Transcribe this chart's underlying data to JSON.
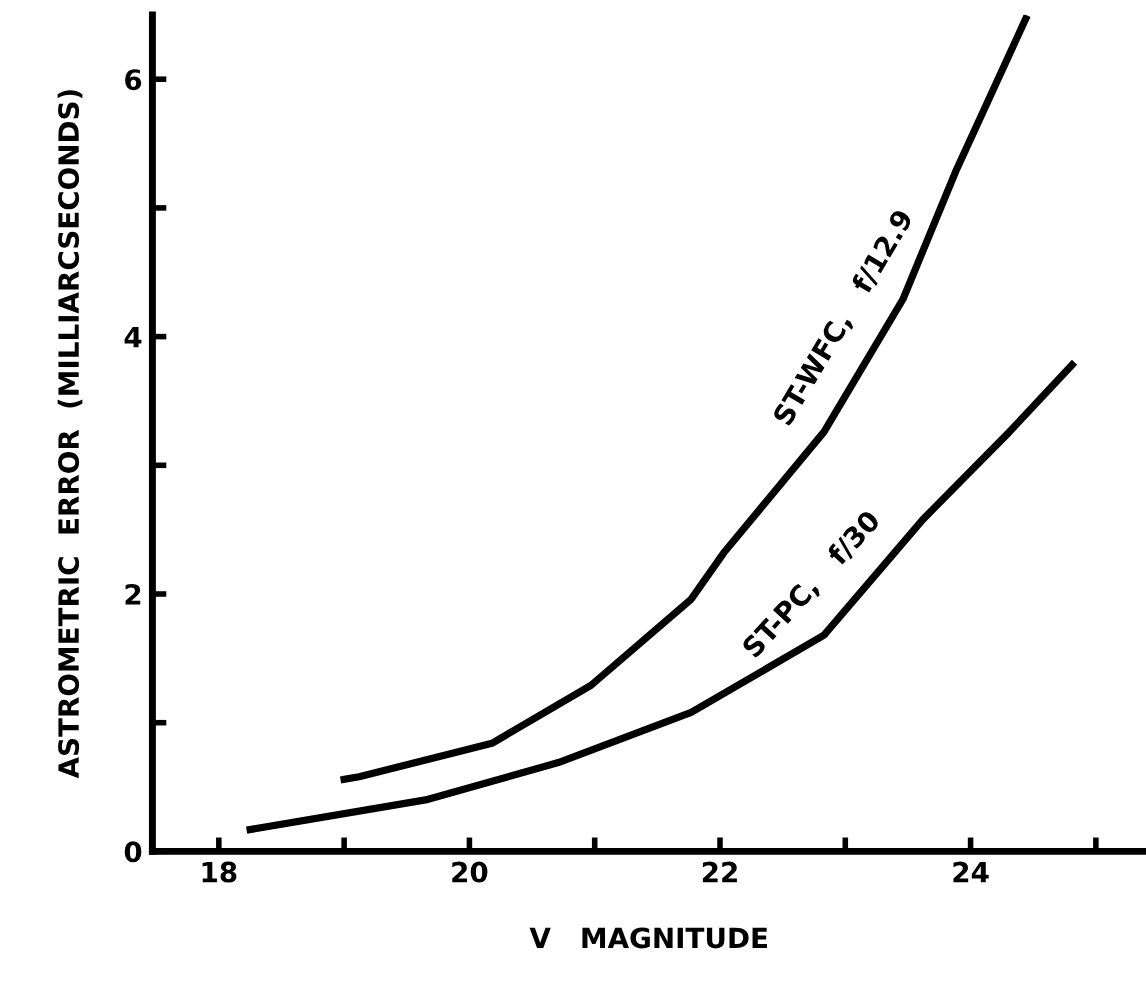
{
  "chart_data": {
    "type": "line",
    "xlabel": "V   MAGNITUDE",
    "ylabel": "ASTROMETRIC  ERROR  (MILLIARCSECONDS)",
    "xlim": [
      17.47,
      25.4
    ],
    "ylim": [
      0,
      6.5
    ],
    "xticks": [
      18,
      {
        "value": 19,
        "label": null
      },
      20,
      {
        "value": 21,
        "label": null
      },
      22,
      {
        "value": 23,
        "label": null
      },
      24,
      {
        "value": 25,
        "label": null
      }
    ],
    "yticks": [
      0,
      {
        "value": 1,
        "label": null
      },
      2,
      {
        "value": 3,
        "label": null
      },
      4,
      {
        "value": 5,
        "label": null
      },
      6
    ],
    "grid": false,
    "legend": false,
    "line_style": "solid",
    "series": [
      {
        "name": "ST-WFC,   f/12.9",
        "color": "#000000",
        "x": [
          19.0,
          19.12,
          20.18,
          20.97,
          21.77,
          22.03,
          22.83,
          23.46,
          23.88,
          24.44
        ],
        "values": [
          0.56,
          0.58,
          0.84,
          1.29,
          1.96,
          2.32,
          3.26,
          4.29,
          5.28,
          6.47
        ]
      },
      {
        "name": "ST-PC,   f/30",
        "color": "#000000",
        "x": [
          18.25,
          19.65,
          20.71,
          21.77,
          22.83,
          23.62,
          24.31,
          24.81
        ],
        "values": [
          0.17,
          0.4,
          0.69,
          1.08,
          1.68,
          2.58,
          3.26,
          3.78
        ]
      }
    ]
  }
}
